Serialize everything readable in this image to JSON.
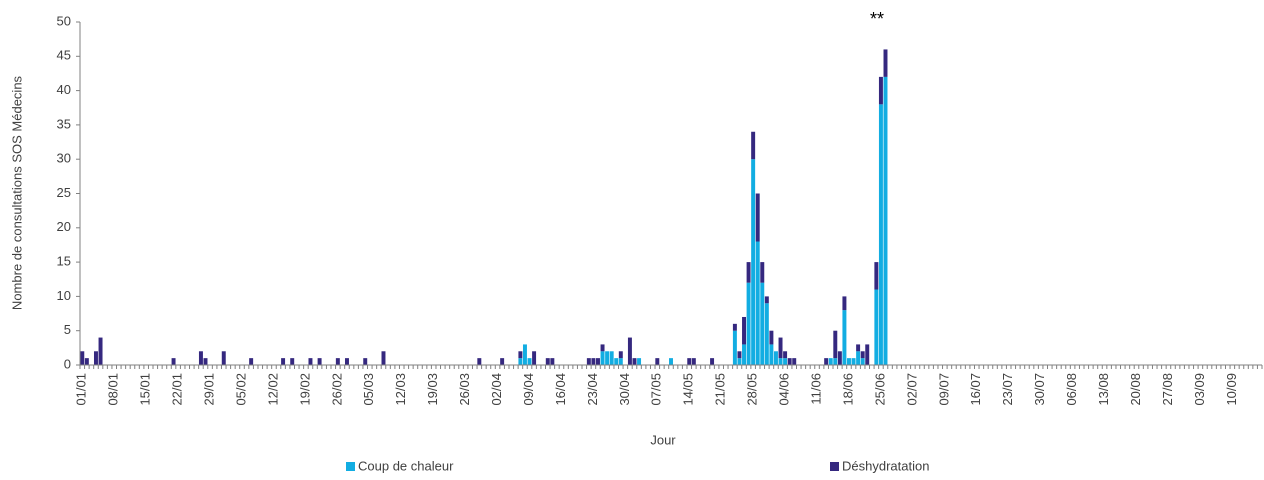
{
  "chart_data": {
    "type": "stacked_bar",
    "annotation": "**",
    "y_label": "Nombre de consultations SOS Médecins",
    "x_label": "Jour",
    "legend": "bottom",
    "grid": false,
    "ylim": [
      0,
      50
    ],
    "yticks": [
      0,
      5,
      10,
      15,
      20,
      25,
      30,
      35,
      40,
      45,
      50
    ],
    "categories": [
      "01/01",
      null,
      null,
      null,
      null,
      null,
      null,
      "08/01",
      null,
      null,
      null,
      null,
      null,
      null,
      "15/01",
      null,
      null,
      null,
      null,
      null,
      null,
      "22/01",
      null,
      null,
      null,
      null,
      null,
      null,
      "29/01",
      null,
      null,
      null,
      null,
      null,
      null,
      "05/02",
      null,
      null,
      null,
      null,
      null,
      null,
      "12/02",
      null,
      null,
      null,
      null,
      null,
      null,
      "19/02",
      null,
      null,
      null,
      null,
      null,
      null,
      "26/02",
      null,
      null,
      null,
      null,
      null,
      null,
      "05/03",
      null,
      null,
      null,
      null,
      null,
      null,
      "12/03",
      null,
      null,
      null,
      null,
      null,
      null,
      "19/03",
      null,
      null,
      null,
      null,
      null,
      null,
      "26/03",
      null,
      null,
      null,
      null,
      null,
      null,
      "02/04",
      null,
      null,
      null,
      null,
      null,
      null,
      "09/04",
      null,
      null,
      null,
      null,
      null,
      null,
      "16/04",
      null,
      null,
      null,
      null,
      null,
      null,
      "23/04",
      null,
      null,
      null,
      null,
      null,
      null,
      "30/04",
      null,
      null,
      null,
      null,
      null,
      null,
      "07/05",
      null,
      null,
      null,
      null,
      null,
      null,
      "14/05",
      null,
      null,
      null,
      null,
      null,
      null,
      "21/05",
      null,
      null,
      null,
      null,
      null,
      null,
      "28/05",
      null,
      null,
      null,
      null,
      null,
      null,
      "04/06",
      null,
      null,
      null,
      null,
      null,
      null,
      "11/06",
      null,
      null,
      null,
      null,
      null,
      null,
      "18/06",
      null,
      null,
      null,
      null,
      null,
      null,
      "25/06",
      null,
      null,
      null,
      null,
      null,
      null,
      "02/07",
      null,
      null,
      null,
      null,
      null,
      null,
      "09/07",
      null,
      null,
      null,
      null,
      null,
      null,
      "16/07",
      null,
      null,
      null,
      null,
      null,
      null,
      "23/07",
      null,
      null,
      null,
      null,
      null,
      null,
      "30/07",
      null,
      null,
      null,
      null,
      null,
      null,
      "06/08",
      null,
      null,
      null,
      null,
      null,
      null,
      "13/08",
      null,
      null,
      null,
      null,
      null,
      null,
      "20/08",
      null,
      null,
      null,
      null,
      null,
      null,
      "27/08",
      null,
      null,
      null,
      null,
      null,
      null,
      "03/09",
      null,
      null,
      null,
      null,
      null,
      null,
      "10/09",
      null,
      null,
      null,
      null,
      null,
      null
    ],
    "series": [
      {
        "name": "Coup de chaleur",
        "color": "#12ade2",
        "values": [
          0,
          0,
          0,
          0,
          0,
          0,
          0,
          0,
          0,
          0,
          0,
          0,
          0,
          0,
          0,
          0,
          0,
          0,
          0,
          0,
          0,
          0,
          0,
          0,
          0,
          0,
          0,
          0,
          0,
          0,
          0,
          0,
          0,
          0,
          0,
          0,
          0,
          0,
          0,
          0,
          0,
          0,
          0,
          0,
          0,
          0,
          0,
          0,
          0,
          0,
          0,
          0,
          0,
          0,
          0,
          0,
          0,
          0,
          0,
          0,
          0,
          0,
          0,
          0,
          0,
          0,
          0,
          0,
          0,
          0,
          0,
          0,
          0,
          0,
          0,
          0,
          0,
          0,
          0,
          0,
          0,
          0,
          0,
          0,
          0,
          0,
          0,
          0,
          0,
          0,
          0,
          0,
          0,
          0,
          0,
          0,
          1,
          3,
          1,
          0,
          0,
          0,
          0,
          0,
          0,
          0,
          0,
          0,
          0,
          0,
          0,
          0,
          0,
          0,
          2,
          2,
          2,
          1,
          1,
          0,
          0,
          0,
          1,
          0,
          0,
          0,
          0,
          0,
          0,
          1,
          0,
          0,
          0,
          0,
          0,
          0,
          0,
          0,
          0,
          0,
          0,
          0,
          0,
          5,
          1,
          3,
          12,
          30,
          18,
          12,
          9,
          3,
          2,
          1,
          1,
          0,
          0,
          0,
          0,
          0,
          0,
          0,
          0,
          0,
          1,
          1,
          0,
          8,
          1,
          1,
          2,
          1,
          0,
          0,
          11,
          38,
          42,
          0,
          0,
          0,
          0,
          0,
          0,
          0,
          0,
          0,
          0,
          0,
          0,
          0,
          0,
          0,
          0,
          0,
          0,
          0,
          0,
          0,
          0,
          0,
          0,
          0,
          0,
          0,
          0,
          0,
          0,
          0,
          0,
          0,
          0,
          0,
          0,
          0,
          0,
          0,
          0,
          0,
          0,
          0,
          0,
          0,
          0,
          0,
          0,
          0,
          0,
          0,
          0,
          0,
          0,
          0,
          0,
          0,
          0,
          0,
          0,
          0,
          0,
          0,
          0,
          0,
          0,
          0,
          0,
          0,
          0,
          0,
          0,
          0,
          0,
          0,
          0,
          0,
          0,
          0,
          0,
          0,
          0
        ]
      },
      {
        "name": "Déshydratation",
        "color": "#35287f",
        "values": [
          2,
          1,
          0,
          2,
          4,
          0,
          0,
          0,
          0,
          0,
          0,
          0,
          0,
          0,
          0,
          0,
          0,
          0,
          0,
          0,
          1,
          0,
          0,
          0,
          0,
          0,
          2,
          1,
          0,
          0,
          0,
          2,
          0,
          0,
          0,
          0,
          0,
          1,
          0,
          0,
          0,
          0,
          0,
          0,
          1,
          0,
          1,
          0,
          0,
          0,
          1,
          0,
          1,
          0,
          0,
          0,
          1,
          0,
          1,
          0,
          0,
          0,
          1,
          0,
          0,
          0,
          2,
          0,
          0,
          0,
          0,
          0,
          0,
          0,
          0,
          0,
          0,
          0,
          0,
          0,
          0,
          0,
          0,
          0,
          0,
          0,
          0,
          1,
          0,
          0,
          0,
          0,
          1,
          0,
          0,
          0,
          1,
          0,
          0,
          2,
          0,
          0,
          1,
          1,
          0,
          0,
          0,
          0,
          0,
          0,
          0,
          1,
          1,
          1,
          1,
          0,
          0,
          0,
          1,
          0,
          4,
          1,
          0,
          0,
          0,
          0,
          1,
          0,
          0,
          0,
          0,
          0,
          0,
          1,
          1,
          0,
          0,
          0,
          1,
          0,
          0,
          0,
          0,
          1,
          1,
          4,
          3,
          4,
          7,
          3,
          1,
          2,
          0,
          3,
          1,
          1,
          1,
          0,
          0,
          0,
          0,
          0,
          0,
          1,
          0,
          4,
          2,
          2,
          0,
          0,
          1,
          1,
          3,
          0,
          4,
          4,
          4,
          0,
          0,
          0,
          0,
          0,
          0,
          0,
          0,
          0,
          0,
          0,
          0,
          0,
          0,
          0,
          0,
          0,
          0,
          0,
          0,
          0,
          0,
          0,
          0,
          0,
          0,
          0,
          0,
          0,
          0,
          0,
          0,
          0,
          0,
          0,
          0,
          0,
          0,
          0,
          0,
          0,
          0,
          0,
          0,
          0,
          0,
          0,
          0,
          0,
          0,
          0,
          0,
          0,
          0,
          0,
          0,
          0,
          0,
          0,
          0,
          0,
          0,
          0,
          0,
          0,
          0,
          0,
          0,
          0,
          0,
          0,
          0,
          0,
          0,
          0,
          0,
          0,
          0,
          0,
          0,
          0,
          0
        ]
      }
    ]
  }
}
